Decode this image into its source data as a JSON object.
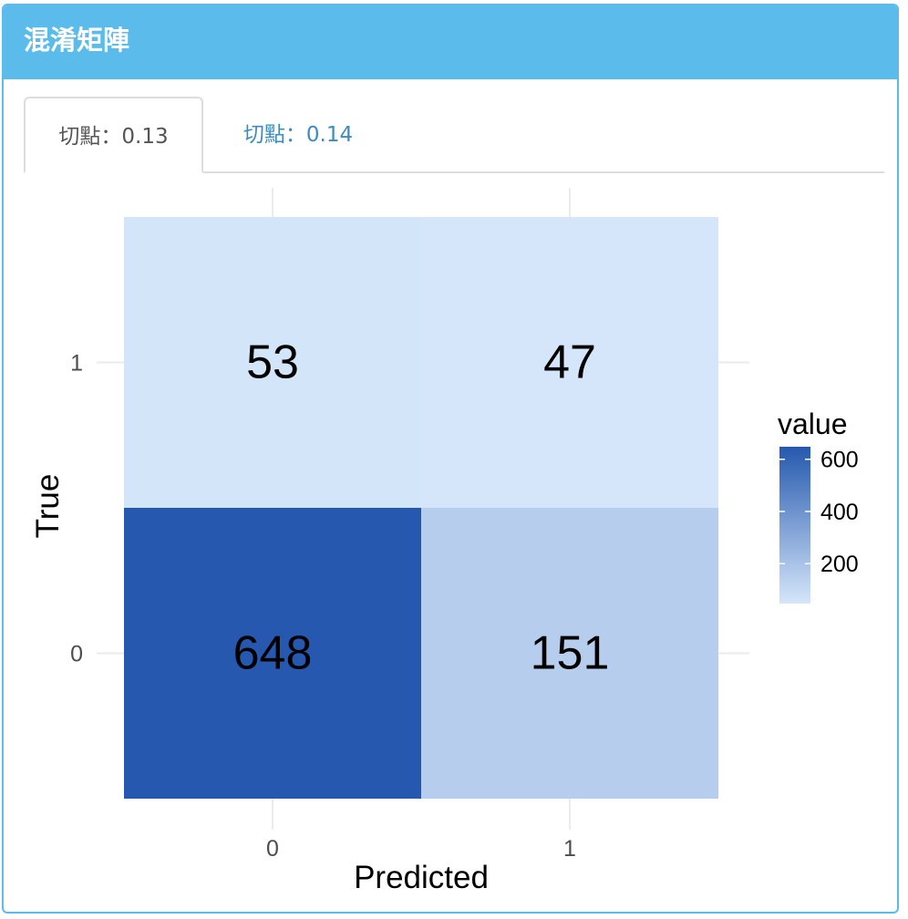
{
  "box": {
    "title": "混淆矩陣"
  },
  "tabs": [
    {
      "label": "切點：0.13",
      "active": true
    },
    {
      "label": "切點：0.14",
      "active": false
    }
  ],
  "colors": {
    "header": "#5bbceb",
    "tab_link": "#3c8dbc",
    "low": "#d5e6fa",
    "high": "#2558ae"
  },
  "chart_data": {
    "type": "heatmap",
    "x_categories": [
      "0",
      "1"
    ],
    "y_categories": [
      "0",
      "1"
    ],
    "xlabel": "Predicted",
    "ylabel": "True",
    "cells": [
      {
        "predicted": "0",
        "true": "1",
        "value": 53
      },
      {
        "predicted": "1",
        "true": "1",
        "value": 47
      },
      {
        "predicted": "0",
        "true": "0",
        "value": 648
      },
      {
        "predicted": "1",
        "true": "0",
        "value": 151
      }
    ],
    "legend": {
      "title": "value",
      "ticks": [
        600,
        400,
        200
      ],
      "range": [
        47,
        648
      ]
    }
  }
}
